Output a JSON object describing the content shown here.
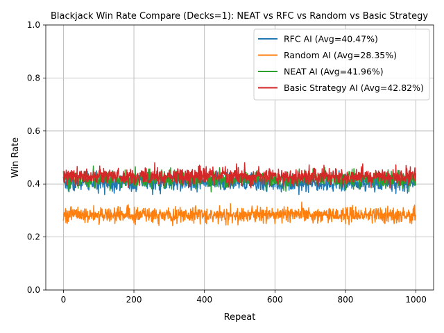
{
  "chart_data": {
    "type": "line",
    "title": "Blackjack Win Rate Compare (Decks=1): NEAT vs RFC vs Random vs Basic Strategy",
    "xlabel": "Repeat",
    "ylabel": "Win Rate",
    "xlim": [
      -50,
      1050
    ],
    "ylim": [
      0,
      1
    ],
    "x_ticks": [
      0,
      200,
      400,
      600,
      800,
      1000
    ],
    "y_ticks": [
      0.0,
      0.2,
      0.4,
      0.6,
      0.8,
      1.0
    ],
    "x_tick_labels": [
      "0",
      "200",
      "400",
      "600",
      "800",
      "1000"
    ],
    "y_tick_labels": [
      "0.0",
      "0.2",
      "0.4",
      "0.6",
      "0.8",
      "1.0"
    ],
    "grid": true,
    "legend_position": "top-right",
    "x_range": [
      0,
      999
    ],
    "series": [
      {
        "name": "RFC AI (Avg=40.47%)",
        "color": "#1f77b4",
        "mean": 0.4047,
        "spread": 0.016,
        "min": 0.36,
        "max": 0.45
      },
      {
        "name": "Random AI (Avg=28.35%)",
        "color": "#ff7f0e",
        "mean": 0.2835,
        "spread": 0.015,
        "min": 0.235,
        "max": 0.335
      },
      {
        "name": "NEAT AI (Avg=41.96%)",
        "color": "#2ca02c",
        "mean": 0.4196,
        "spread": 0.016,
        "min": 0.37,
        "max": 0.47
      },
      {
        "name": "Basic Strategy AI (Avg=42.82%)",
        "color": "#d62728",
        "mean": 0.4282,
        "spread": 0.016,
        "min": 0.385,
        "max": 0.48
      }
    ]
  }
}
